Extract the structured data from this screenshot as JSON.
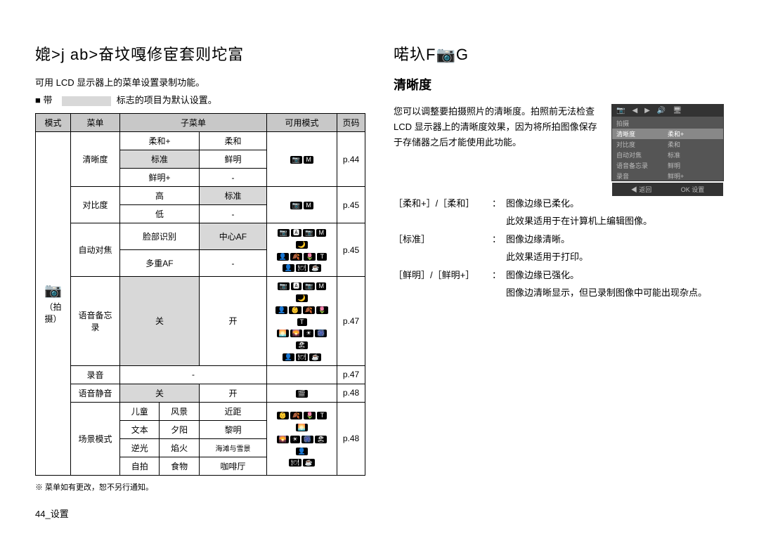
{
  "left": {
    "title": "媲>j ab>奋坟嘎修宦套则坨富",
    "intro1": "可用 LCD 显示器上的菜单设置录制功能。",
    "intro2_prefix": "■ 带",
    "intro2_suffix": "标志的项目为默认设置。",
    "headers": {
      "mode": "模式",
      "menu": "菜单",
      "submenu": "子菜单",
      "avail": "可用模式",
      "page": "页码"
    },
    "mode_label": "（拍摄）",
    "rows": {
      "sharpness": {
        "menu": "清晰度",
        "s1a": "柔和+",
        "s1b": "柔和",
        "s2a": "标准",
        "s2b": "鲜明",
        "s3a": "鲜明+",
        "s3b": "-",
        "page": "p.44"
      },
      "contrast": {
        "menu": "对比度",
        "s1a": "高",
        "s1b": "标准",
        "s2a": "低",
        "s2b": "-",
        "page": "p.45"
      },
      "af": {
        "menu": "自动对焦",
        "s1a": "脸部识别",
        "s1b": "中心AF",
        "s2a": "多重AF",
        "s2b": "-",
        "page": "p.45"
      },
      "voicememo": {
        "menu": "语音备忘录",
        "s1a": "关",
        "s1b": "开",
        "page": "p.47"
      },
      "record": {
        "menu": "录音",
        "s1a": "-",
        "page": "p.47"
      },
      "mute": {
        "menu": "语音静音",
        "s1a": "关",
        "s1b": "开",
        "page": "p.48"
      },
      "scene": {
        "menu": "场景模式",
        "r1c1": "儿童",
        "r1c2": "风景",
        "r1c3": "近距",
        "r2c1": "文本",
        "r2c2": "夕阳",
        "r2c3": "黎明",
        "r3c1": "逆光",
        "r3c2": "焰火",
        "r3c3": "海滩与雪景",
        "r4c1": "自拍",
        "r4c2": "食物",
        "r4c3": "咖啡厅",
        "page": "p.48"
      }
    },
    "table_note": "※ 菜单如有更改，恕不另行通知。",
    "page_num": "44_设置"
  },
  "right": {
    "title": "喏圦F📷G",
    "section": "清晰度",
    "paragraph": "您可以调整要拍摄照片的清晰度。拍照前无法检查 LCD 显示器上的清晰度效果，因为将所拍图像保存于存储器之后才能使用此功能。",
    "preview": {
      "tab": "拍摄",
      "hl_l": "清晰度",
      "hl_r": "柔和+",
      "r2l": "对比度",
      "r2r": "柔和",
      "r3l": "自动对焦",
      "r3r": "标准",
      "r4l": "语音备忘录",
      "r4r": "鲜明",
      "r5l": "录音",
      "r5r": "鲜明+",
      "f1": "◀ 返回",
      "f2": "OK 设置"
    },
    "defs": {
      "d1_label": "［柔和+］/［柔和］",
      "d1_desc1": "图像边缘已柔化。",
      "d1_desc2": "此效果适用于在计算机上编辑图像。",
      "d2_label": "［标准］",
      "d2_desc1": "图像边缘清晰。",
      "d2_desc2": "此效果适用于打印。",
      "d3_label": "［鲜明］/［鲜明+］",
      "d3_desc1": "图像边缘已强化。",
      "d3_desc2": "图像边清晰显示，但已录制图像中可能出现杂点。"
    }
  }
}
